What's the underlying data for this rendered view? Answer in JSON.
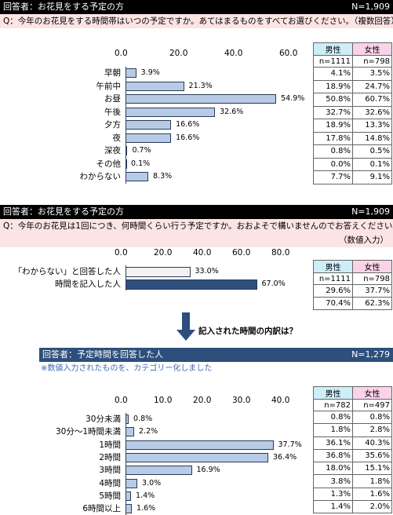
{
  "section1": {
    "header_left": "回答者：お花見をする予定の方",
    "header_right": "N=1,909",
    "question": "Q：今年のお花見をする時間帯はいつの予定ですか。あてはまるものをすべてお選びください。（複数回答）",
    "table_head": {
      "male": "男性",
      "female": "女性",
      "male_n": "n=1111",
      "female_n": "n=798"
    },
    "rows": [
      {
        "label": "早朝",
        "value_label": "3.9%",
        "male": "4.1%",
        "female": "3.5%"
      },
      {
        "label": "午前中",
        "value_label": "21.3%",
        "male": "18.9%",
        "female": "24.7%"
      },
      {
        "label": "お昼",
        "value_label": "54.9%",
        "male": "50.8%",
        "female": "60.7%"
      },
      {
        "label": "午後",
        "value_label": "32.6%",
        "male": "32.7%",
        "female": "32.6%"
      },
      {
        "label": "夕方",
        "value_label": "16.6%",
        "male": "18.9%",
        "female": "13.3%"
      },
      {
        "label": "夜",
        "value_label": "16.6%",
        "male": "17.8%",
        "female": "14.8%"
      },
      {
        "label": "深夜",
        "value_label": "0.7%",
        "male": "0.8%",
        "female": "0.5%"
      },
      {
        "label": "その他",
        "value_label": "0.1%",
        "male": "0.0%",
        "female": "0.1%"
      },
      {
        "label": "わからない",
        "value_label": "8.3%",
        "male": "7.7%",
        "female": "9.1%"
      }
    ]
  },
  "section2": {
    "header_left": "回答者：お花見をする予定の方",
    "header_right": "N=1,909",
    "question": "Q：今年のお花見は1回につき、何時間くらい行う予定ですか。おおよそで構いませんのでお答えください。",
    "question_note": "（数値入力）",
    "table_head": {
      "male": "男性",
      "female": "女性",
      "male_n": "n=1111",
      "female_n": "n=798"
    },
    "rows": [
      {
        "label": "「わからない」と回答した人",
        "value_label": "33.0%",
        "male": "29.6%",
        "female": "37.7%"
      },
      {
        "label": "時間を記入した人",
        "value_label": "67.0%",
        "male": "70.4%",
        "female": "62.3%"
      }
    ],
    "arrow_caption": "記入された時間の内訳は？"
  },
  "section3": {
    "header_left": "回答者：予定時間を回答した人",
    "header_right": "N=1,279",
    "note": "※数値入力されたものを、カテゴリー化しました",
    "table_head": {
      "male": "男性",
      "female": "女性",
      "male_n": "n=782",
      "female_n": "n=497"
    },
    "rows": [
      {
        "label": "30分未満",
        "value_label": "0.8%",
        "male": "0.8%",
        "female": "0.8%"
      },
      {
        "label": "30分～1時間未満",
        "value_label": "2.2%",
        "male": "1.8%",
        "female": "2.8%"
      },
      {
        "label": "1時間",
        "value_label": "37.7%",
        "male": "36.1%",
        "female": "40.3%"
      },
      {
        "label": "2時間",
        "value_label": "36.4%",
        "male": "36.8%",
        "female": "35.6%"
      },
      {
        "label": "3時間",
        "value_label": "16.9%",
        "male": "18.0%",
        "female": "15.1%"
      },
      {
        "label": "4時間",
        "value_label": "3.0%",
        "male": "3.8%",
        "female": "1.8%"
      },
      {
        "label": "5時間",
        "value_label": "1.4%",
        "male": "1.3%",
        "female": "1.6%"
      },
      {
        "label": "6時間以上",
        "value_label": "1.6%",
        "male": "1.4%",
        "female": "2.0%"
      }
    ]
  },
  "colors": {
    "bar": "#b8cbe6",
    "bar_dark": "#2e4f7c",
    "bar_light": "#f2f2f2",
    "pink": "#fce4e4"
  },
  "chart_data": [
    {
      "type": "bar",
      "orientation": "horizontal",
      "categories": [
        "早朝",
        "午前中",
        "お昼",
        "午後",
        "夕方",
        "夜",
        "深夜",
        "その他",
        "わからない"
      ],
      "values": [
        3.9,
        21.3,
        54.9,
        32.6,
        16.6,
        16.6,
        0.7,
        0.1,
        8.3
      ],
      "xlim": [
        0,
        60
      ],
      "ticks": [
        "0.0",
        "20.0",
        "40.0",
        "60.0"
      ],
      "tick_values": [
        0,
        20,
        40,
        60
      ]
    },
    {
      "type": "bar",
      "orientation": "horizontal",
      "categories": [
        "「わからない」と回答した人",
        "時間を記入した人"
      ],
      "values": [
        33.0,
        67.0
      ],
      "xlim": [
        0,
        80
      ],
      "ticks": [
        "0.0",
        "20.0",
        "40.0",
        "60.0",
        "80.0"
      ],
      "tick_values": [
        0,
        20,
        40,
        60,
        80
      ]
    },
    {
      "type": "bar",
      "orientation": "horizontal",
      "categories": [
        "30分未満",
        "30分～1時間未満",
        "1時間",
        "2時間",
        "3時間",
        "4時間",
        "5時間",
        "6時間以上"
      ],
      "values": [
        0.8,
        2.2,
        37.7,
        36.4,
        16.9,
        3.0,
        1.4,
        1.6
      ],
      "xlim": [
        0,
        40
      ],
      "ticks": [
        "0.0",
        "10.0",
        "20.0",
        "30.0",
        "40.0"
      ],
      "tick_values": [
        0,
        10,
        20,
        30,
        40
      ]
    }
  ]
}
